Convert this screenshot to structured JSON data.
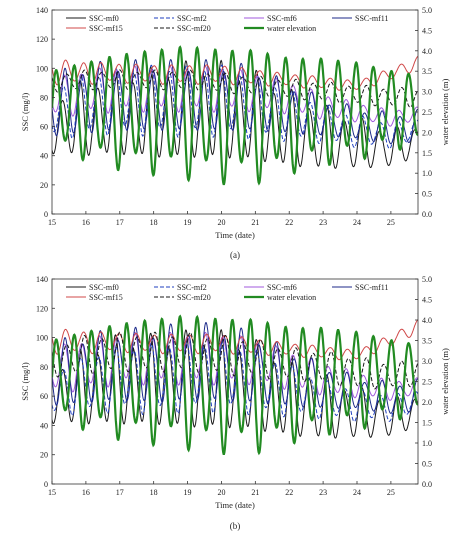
{
  "chart_data": [
    {
      "type": "line",
      "panel_label": "(a)",
      "xlabel": "Time (date)",
      "ylabel": "SSC (mg/l)",
      "y2label": "water elevation (m)",
      "xlim": [
        15,
        25.8
      ],
      "ylim": [
        0,
        140
      ],
      "y2lim": [
        0,
        5
      ],
      "xticks": [
        "15",
        "16",
        "17",
        "18",
        "19",
        "20",
        "21",
        "22",
        "23",
        "24",
        "25"
      ],
      "yticks": [
        "0",
        "20",
        "40",
        "60",
        "80",
        "100",
        "120",
        "140"
      ],
      "y2ticks": [
        "0.0",
        "0.5",
        "1.0",
        "1.5",
        "2.0",
        "2.5",
        "3.0",
        "3.5",
        "4.0",
        "4.5",
        "5.0"
      ],
      "grid": false,
      "legend_position": "top",
      "series": [
        {
          "name": "SSC-mf0",
          "color": "#1a1a1a",
          "dash": "solid",
          "axis": "left",
          "t": [
            15,
            16,
            17,
            18,
            19,
            20,
            21,
            22,
            23,
            24,
            25,
            25.8
          ],
          "mean": [
            60,
            65,
            68,
            68,
            70,
            70,
            66,
            58,
            52,
            48,
            45,
            50
          ],
          "amp": [
            18,
            24,
            26,
            28,
            30,
            30,
            28,
            24,
            20,
            16,
            12,
            10
          ]
        },
        {
          "name": "SSC-mf2",
          "color": "#1f3fbf",
          "dash": "dashed",
          "axis": "left",
          "t": [
            15,
            16,
            17,
            18,
            19,
            20,
            21,
            22,
            23,
            24,
            25,
            25.8
          ],
          "mean": [
            70,
            75,
            78,
            78,
            78,
            78,
            74,
            68,
            62,
            57,
            54,
            58
          ],
          "amp": [
            16,
            20,
            20,
            22,
            22,
            22,
            20,
            16,
            12,
            10,
            8,
            8
          ]
        },
        {
          "name": "SSC-mf6",
          "color": "#a05adc",
          "dash": "solid",
          "axis": "left",
          "t": [
            15,
            16,
            17,
            18,
            19,
            20,
            21,
            22,
            23,
            24,
            25,
            25.8
          ],
          "mean": [
            80,
            84,
            86,
            86,
            86,
            86,
            84,
            80,
            74,
            70,
            66,
            68
          ],
          "amp": [
            12,
            14,
            14,
            14,
            14,
            14,
            12,
            10,
            8,
            6,
            5,
            5
          ]
        },
        {
          "name": "SSC-mf11",
          "color": "#1c2a8a",
          "dash": "solid",
          "axis": "left",
          "t": [
            15,
            16,
            17,
            18,
            19,
            20,
            21,
            22,
            23,
            24,
            25,
            25.8
          ],
          "mean": [
            74,
            78,
            80,
            80,
            80,
            80,
            78,
            72,
            66,
            62,
            58,
            60
          ],
          "amp": [
            20,
            22,
            22,
            22,
            22,
            22,
            20,
            16,
            12,
            10,
            10,
            10
          ]
        },
        {
          "name": "SSC-mf15",
          "color": "#d04848",
          "dash": "solid",
          "axis": "left",
          "t": [
            15,
            16,
            17,
            18,
            19,
            20,
            21,
            22,
            23,
            24,
            25,
            25.8
          ],
          "mean": [
            98,
            97,
            97,
            96,
            96,
            96,
            94,
            92,
            90,
            88,
            96,
            104
          ],
          "amp": [
            8,
            7,
            6,
            6,
            6,
            6,
            5,
            4,
            4,
            3,
            4,
            4
          ]
        },
        {
          "name": "SSC-mf20",
          "color": "#1a1a1a",
          "dash": "dashed",
          "axis": "left",
          "t": [
            15,
            16,
            17,
            18,
            19,
            20,
            21,
            22,
            23,
            24,
            25,
            25.8
          ],
          "mean": [
            90,
            92,
            92,
            92,
            92,
            90,
            88,
            86,
            84,
            82,
            80,
            80
          ],
          "amp": [
            6,
            6,
            6,
            6,
            6,
            6,
            6,
            6,
            6,
            6,
            6,
            6
          ]
        },
        {
          "name": "water elevation",
          "color": "#228b22",
          "dash": "solid",
          "axis": "right",
          "t": [
            15,
            16,
            17,
            18,
            19,
            20,
            21,
            22,
            23,
            24,
            25,
            25.8
          ],
          "mean": [
            2.6,
            2.6,
            2.6,
            2.6,
            2.6,
            2.5,
            2.5,
            2.5,
            2.6,
            2.6,
            2.6,
            2.6
          ],
          "amp": [
            0.9,
            1.1,
            1.3,
            1.4,
            1.5,
            1.5,
            1.5,
            1.3,
            1.2,
            1.1,
            0.9,
            0.8
          ]
        }
      ]
    },
    {
      "type": "line",
      "panel_label": "(b)",
      "xlabel": "Time (date)",
      "ylabel": "SSC (mg/l)",
      "y2label": "water elevation (m)",
      "xlim": [
        15,
        25.8
      ],
      "ylim": [
        0,
        140
      ],
      "y2lim": [
        0,
        5
      ],
      "xticks": [
        "15",
        "16",
        "17",
        "18",
        "19",
        "20",
        "21",
        "22",
        "23",
        "24",
        "25"
      ],
      "yticks": [
        "0",
        "20",
        "40",
        "60",
        "80",
        "100",
        "120",
        "140"
      ],
      "y2ticks": [
        "0.0",
        "0.5",
        "1.0",
        "1.5",
        "2.0",
        "2.5",
        "3.0",
        "3.5",
        "4.0",
        "4.5",
        "5.0"
      ],
      "grid": false,
      "legend_position": "top",
      "series": [
        {
          "name": "SSC-mf0",
          "color": "#1a1a1a",
          "dash": "solid",
          "axis": "left",
          "t": [
            15,
            16,
            17,
            18,
            19,
            20,
            21,
            22,
            23,
            24,
            25,
            25.8
          ],
          "mean": [
            60,
            66,
            70,
            70,
            70,
            70,
            66,
            58,
            52,
            48,
            45,
            50
          ],
          "amp": [
            18,
            24,
            28,
            28,
            30,
            30,
            28,
            24,
            20,
            16,
            12,
            10
          ]
        },
        {
          "name": "SSC-mf2",
          "color": "#1f3fbf",
          "dash": "dashed",
          "axis": "left",
          "t": [
            15,
            16,
            17,
            18,
            19,
            20,
            21,
            22,
            23,
            24,
            25,
            25.8
          ],
          "mean": [
            62,
            68,
            72,
            72,
            74,
            74,
            70,
            64,
            58,
            54,
            52,
            56
          ],
          "amp": [
            14,
            18,
            20,
            22,
            22,
            22,
            20,
            16,
            12,
            10,
            8,
            8
          ]
        },
        {
          "name": "SSC-mf6",
          "color": "#a05adc",
          "dash": "solid",
          "axis": "left",
          "t": [
            15,
            16,
            17,
            18,
            19,
            20,
            21,
            22,
            23,
            24,
            25,
            25.8
          ],
          "mean": [
            78,
            82,
            86,
            86,
            86,
            86,
            84,
            78,
            72,
            68,
            64,
            66
          ],
          "amp": [
            14,
            16,
            16,
            16,
            16,
            16,
            14,
            12,
            10,
            8,
            6,
            6
          ]
        },
        {
          "name": "SSC-mf11",
          "color": "#1c2a8a",
          "dash": "solid",
          "axis": "left",
          "t": [
            15,
            16,
            17,
            18,
            19,
            20,
            21,
            22,
            23,
            24,
            25,
            25.8
          ],
          "mean": [
            74,
            78,
            80,
            80,
            82,
            82,
            78,
            72,
            66,
            62,
            58,
            60
          ],
          "amp": [
            20,
            22,
            22,
            24,
            24,
            24,
            22,
            18,
            14,
            10,
            10,
            10
          ]
        },
        {
          "name": "SSC-mf15",
          "color": "#d04848",
          "dash": "solid",
          "axis": "left",
          "t": [
            15,
            16,
            17,
            18,
            19,
            20,
            21,
            22,
            23,
            24,
            25,
            25.8
          ],
          "mean": [
            98,
            97,
            97,
            96,
            96,
            96,
            94,
            92,
            90,
            88,
            98,
            108
          ],
          "amp": [
            8,
            7,
            6,
            6,
            6,
            6,
            5,
            4,
            4,
            3,
            4,
            4
          ]
        },
        {
          "name": "SSC-mf20",
          "color": "#1a1a1a",
          "dash": "dashed",
          "axis": "left",
          "t": [
            15,
            16,
            17,
            18,
            19,
            20,
            21,
            22,
            23,
            24,
            25,
            25.8
          ],
          "mean": [
            84,
            88,
            90,
            90,
            90,
            88,
            86,
            82,
            80,
            76,
            74,
            76
          ],
          "amp": [
            10,
            12,
            12,
            12,
            12,
            12,
            12,
            10,
            10,
            10,
            8,
            8
          ]
        },
        {
          "name": "water elevation",
          "color": "#228b22",
          "dash": "solid",
          "axis": "right",
          "t": [
            15,
            16,
            17,
            18,
            19,
            20,
            21,
            22,
            23,
            24,
            25,
            25.8
          ],
          "mean": [
            2.6,
            2.6,
            2.6,
            2.6,
            2.6,
            2.5,
            2.5,
            2.5,
            2.6,
            2.6,
            2.6,
            2.6
          ],
          "amp": [
            0.9,
            1.1,
            1.3,
            1.4,
            1.5,
            1.5,
            1.5,
            1.3,
            1.2,
            1.1,
            0.9,
            0.8
          ]
        }
      ]
    }
  ]
}
